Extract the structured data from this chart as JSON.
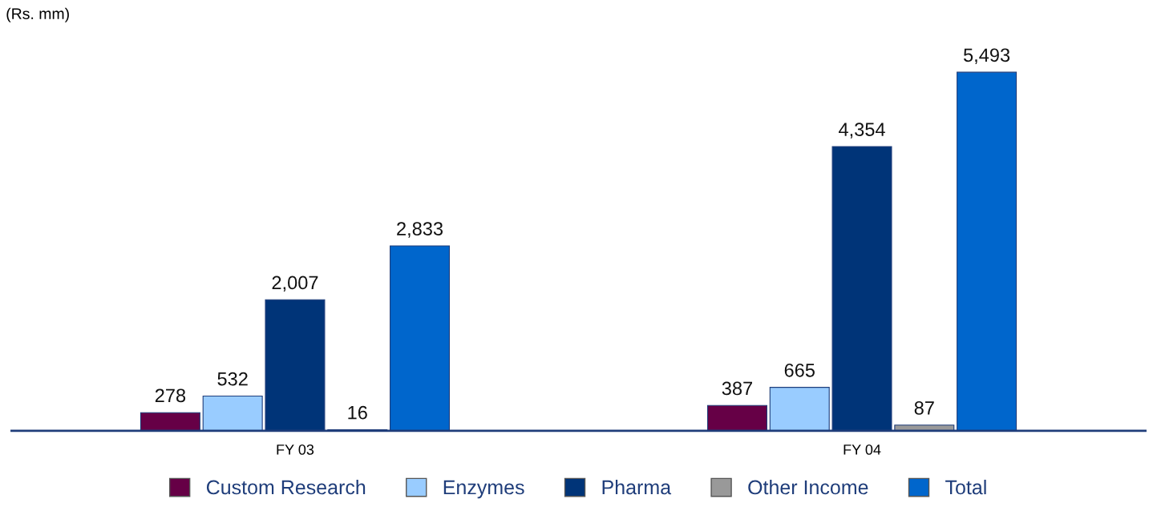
{
  "chart_data": {
    "type": "bar",
    "title": "(Rs. mm)",
    "categories": [
      "FY 03",
      "FY 04"
    ],
    "series": [
      {
        "name": "Custom Research",
        "color": "#660046",
        "values": [
          278,
          387
        ],
        "value_labels": [
          "278",
          "387"
        ]
      },
      {
        "name": "Enzymes",
        "color": "#99ccff",
        "values": [
          532,
          665
        ],
        "value_labels": [
          "532",
          "665"
        ]
      },
      {
        "name": "Pharma",
        "color": "#003478",
        "values": [
          2007,
          4354
        ],
        "value_labels": [
          "2,007",
          "4,354"
        ]
      },
      {
        "name": "Other Income",
        "color": "#999999",
        "values": [
          16,
          87
        ],
        "value_labels": [
          "16",
          "87"
        ]
      },
      {
        "name": "Total",
        "color": "#0066cc",
        "values": [
          2833,
          5493
        ],
        "value_labels": [
          "2,833",
          "5,493"
        ]
      }
    ],
    "legend": "bottom",
    "grid": false
  }
}
